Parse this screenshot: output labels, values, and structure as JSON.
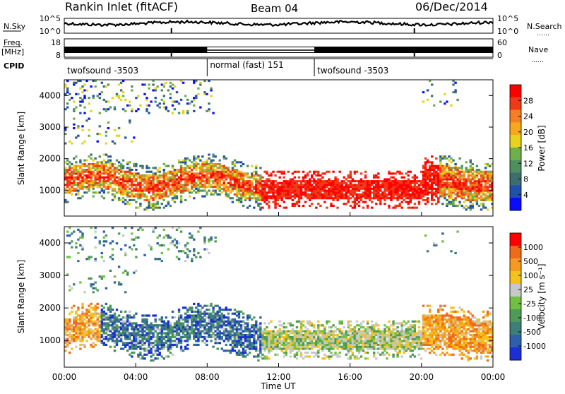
{
  "header": {
    "station": "Rankin Inlet (fitACF)",
    "beam": "Beam 04",
    "date": "06/Dec/2014"
  },
  "noise_panel": {
    "left_label": "N.Sky",
    "right_label": "N.Search",
    "left_ticks": [
      "10^5",
      "10^0"
    ],
    "right_ticks": [
      "10^5",
      "10^0"
    ]
  },
  "freq_panel": {
    "left_label": "Freq.",
    "left_unit": "[MHz]",
    "right_label": "Nave",
    "left_ticks": [
      "18",
      "8"
    ],
    "right_ticks": [
      "60",
      "0"
    ]
  },
  "cpid": {
    "label": "CPID",
    "segments": [
      {
        "name": "twofsound -3503",
        "start": 0,
        "end": 8
      },
      {
        "name": "normal (fast) 151",
        "start": 8,
        "end": 14
      },
      {
        "name": "twofsound -3503",
        "start": 14,
        "end": 24
      }
    ]
  },
  "chart_data": [
    {
      "type": "heatmap",
      "title": "",
      "xlabel": "Time UT",
      "ylabel": "Slant Range [km]",
      "x_ticks": [
        "00:00",
        "04:00",
        "08:00",
        "12:00",
        "16:00",
        "20:00",
        "00:00"
      ],
      "y_ticks": [
        1000,
        2000,
        3000,
        4000
      ],
      "xlim": [
        0,
        24
      ],
      "ylim": [
        180,
        4500
      ],
      "colorbar": {
        "label": "Power [dB]",
        "ticks": [
          "28",
          "24",
          "20",
          "16",
          "12",
          "8",
          "4"
        ],
        "range": [
          0,
          32
        ],
        "colors": [
          "#0b0bff",
          "#1f50b0",
          "#3c6e70",
          "#4f8f5e",
          "#6fb04a",
          "#e6d31e",
          "#f8a81c",
          "#f57e22",
          "#ef3a19",
          "#ff0000"
        ]
      }
    },
    {
      "type": "heatmap",
      "title": "",
      "xlabel": "Time UT",
      "ylabel": "Slant Range [km]",
      "x_ticks": [
        "00:00",
        "04:00",
        "08:00",
        "12:00",
        "16:00",
        "20:00",
        "00:00"
      ],
      "y_ticks": [
        1000,
        2000,
        3000,
        4000
      ],
      "xlim": [
        0,
        24
      ],
      "ylim": [
        180,
        4500
      ],
      "colorbar": {
        "label": "Velocity [m s⁻¹]",
        "ticks": [
          "1000",
          "500",
          "100",
          "25",
          "-25",
          "-100",
          "-500",
          "-1000"
        ],
        "colors": [
          "#1a2fd6",
          "#2e5fa8",
          "#3d7f78",
          "#4f9a58",
          "#72c043",
          "#c8c8c8",
          "#f4c21b",
          "#f59a1e",
          "#f06a1c",
          "#ff0000"
        ]
      }
    }
  ]
}
